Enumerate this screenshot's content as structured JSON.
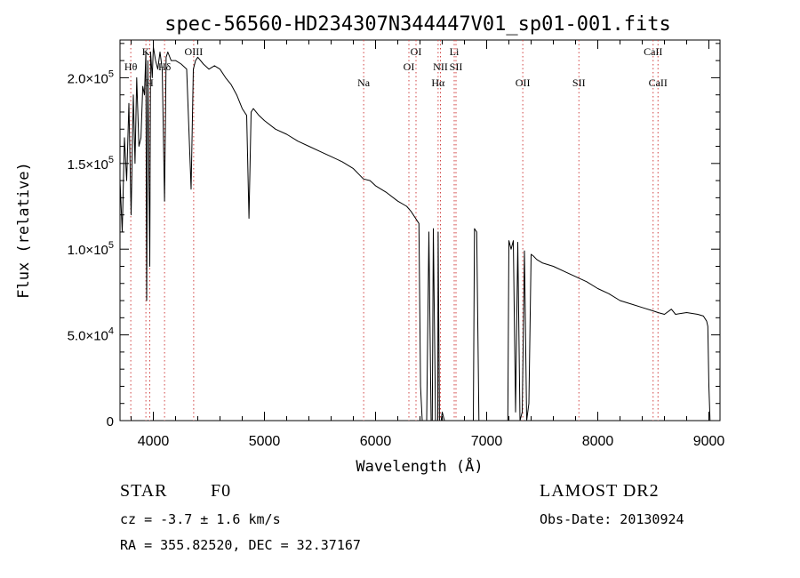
{
  "chart_data": {
    "type": "line",
    "title": "spec-56560-HD234307N344447V01_sp01-001.fits",
    "xlabel": "Wavelength (Å)",
    "ylabel": "Flux (relative)",
    "xlim": [
      3700,
      9100
    ],
    "ylim": [
      0,
      222000
    ],
    "x_ticks": [
      4000,
      5000,
      6000,
      7000,
      8000,
      9000
    ],
    "x_tick_labels": [
      "4000",
      "5000",
      "6000",
      "7000",
      "8000",
      "9000"
    ],
    "y_ticks": [
      0,
      50000,
      100000,
      150000,
      200000
    ],
    "y_tick_labels": [
      {
        "mantissa": "0",
        "exp": ""
      },
      {
        "mantissa": "5.0×10",
        "exp": "4"
      },
      {
        "mantissa": "1.0×10",
        "exp": "5"
      },
      {
        "mantissa": "1.5×10",
        "exp": "5"
      },
      {
        "mantissa": "2.0×10",
        "exp": "5"
      }
    ],
    "grid": false,
    "series": [
      {
        "color": "#000000",
        "x": [
          3700,
          3720,
          3740,
          3760,
          3780,
          3800,
          3820,
          3835,
          3850,
          3870,
          3889,
          3905,
          3920,
          3933,
          3940,
          3950,
          3968,
          3975,
          3990,
          4000,
          4020,
          4040,
          4060,
          4080,
          4101,
          4115,
          4130,
          4160,
          4200,
          4250,
          4300,
          4340,
          4360,
          4380,
          4400,
          4450,
          4500,
          4550,
          4600,
          4650,
          4700,
          4750,
          4800,
          4840,
          4861,
          4880,
          4900,
          4950,
          5000,
          5100,
          5200,
          5300,
          5400,
          5500,
          5600,
          5700,
          5800,
          5890,
          5950,
          6000,
          6100,
          6200,
          6280,
          6320,
          6360,
          6390,
          6405,
          6420,
          6440,
          6460,
          6480,
          6500,
          6510,
          6520,
          6540,
          6560,
          6563,
          6575,
          6590,
          6600,
          6620,
          6650,
          6700,
          6750,
          6800,
          6850,
          6880,
          6890,
          6910,
          6930,
          6950,
          7000,
          7050,
          7100,
          7150,
          7180,
          7190,
          7200,
          7220,
          7240,
          7260,
          7280,
          7300,
          7320,
          7340,
          7360,
          7380,
          7400,
          7420,
          7450,
          7500,
          7600,
          7700,
          7800,
          7900,
          8000,
          8100,
          8200,
          8300,
          8400,
          8498,
          8542,
          8600,
          8662,
          8700,
          8800,
          8900,
          8950,
          8980,
          8990,
          9000,
          9010
        ],
        "y": [
          140000,
          110000,
          165000,
          140000,
          185000,
          120000,
          190000,
          150000,
          200000,
          160000,
          165000,
          195000,
          190000,
          215000,
          70000,
          210000,
          90000,
          215000,
          200000,
          218000,
          210000,
          205000,
          215000,
          205000,
          128000,
          212000,
          215000,
          210000,
          210000,
          208000,
          205000,
          135000,
          205000,
          210000,
          212000,
          208000,
          205000,
          207000,
          205000,
          200000,
          196000,
          190000,
          182000,
          178000,
          118000,
          180000,
          182000,
          178000,
          175000,
          170000,
          167000,
          163000,
          160000,
          157000,
          154000,
          151000,
          147000,
          141000,
          140000,
          137000,
          133000,
          128000,
          125000,
          122000,
          118000,
          115000,
          20000,
          0,
          0,
          0,
          110000,
          0,
          0,
          112000,
          0,
          0,
          110000,
          0,
          0,
          5000,
          0,
          0,
          0,
          0,
          0,
          0,
          0,
          112000,
          110000,
          0,
          0,
          0,
          0,
          0,
          0,
          0,
          0,
          105000,
          100000,
          105000,
          5000,
          104000,
          0,
          5000,
          99000,
          0,
          10000,
          97000,
          96000,
          94000,
          92000,
          90000,
          87000,
          84000,
          81000,
          77000,
          74000,
          70000,
          68000,
          66000,
          64000,
          63000,
          62000,
          65000,
          62000,
          63000,
          62000,
          61000,
          58000,
          55000,
          20000,
          0
        ]
      }
    ],
    "annotations": [
      {
        "label": "Hθ",
        "x": 3797,
        "level": 2
      },
      {
        "label": "K",
        "x": 3933,
        "level": 1
      },
      {
        "label": "H",
        "x": 3968,
        "level": 3
      },
      {
        "label": "Hδ",
        "x": 4101,
        "level": 2
      },
      {
        "label": "OIII",
        "x": 4363,
        "level": 1
      },
      {
        "label": "Na",
        "x": 5893,
        "level": 3
      },
      {
        "label": "OI",
        "x": 6300,
        "level": 2
      },
      {
        "label": "OI",
        "x": 6364,
        "level": 1
      },
      {
        "label": "Hα",
        "x": 6563,
        "level": 3
      },
      {
        "label": "NII",
        "x": 6584,
        "level": 2
      },
      {
        "label": "Li",
        "x": 6708,
        "level": 1
      },
      {
        "label": "SII",
        "x": 6724,
        "level": 2
      },
      {
        "label": "OII",
        "x": 7325,
        "level": 3
      },
      {
        "label": "SII",
        "x": 7830,
        "level": 3
      },
      {
        "label": "CaII",
        "x": 8498,
        "level": 1
      },
      {
        "label": "CaII",
        "x": 8542,
        "level": 3
      }
    ]
  },
  "info": {
    "object_class": "STAR",
    "subclass": "F0",
    "cz": "cz = -3.7 ± 1.6 km/s",
    "coords": "RA = 355.82520, DEC =  32.37167",
    "survey": "LAMOST DR2",
    "obs_date": "Obs-Date: 20130924"
  }
}
